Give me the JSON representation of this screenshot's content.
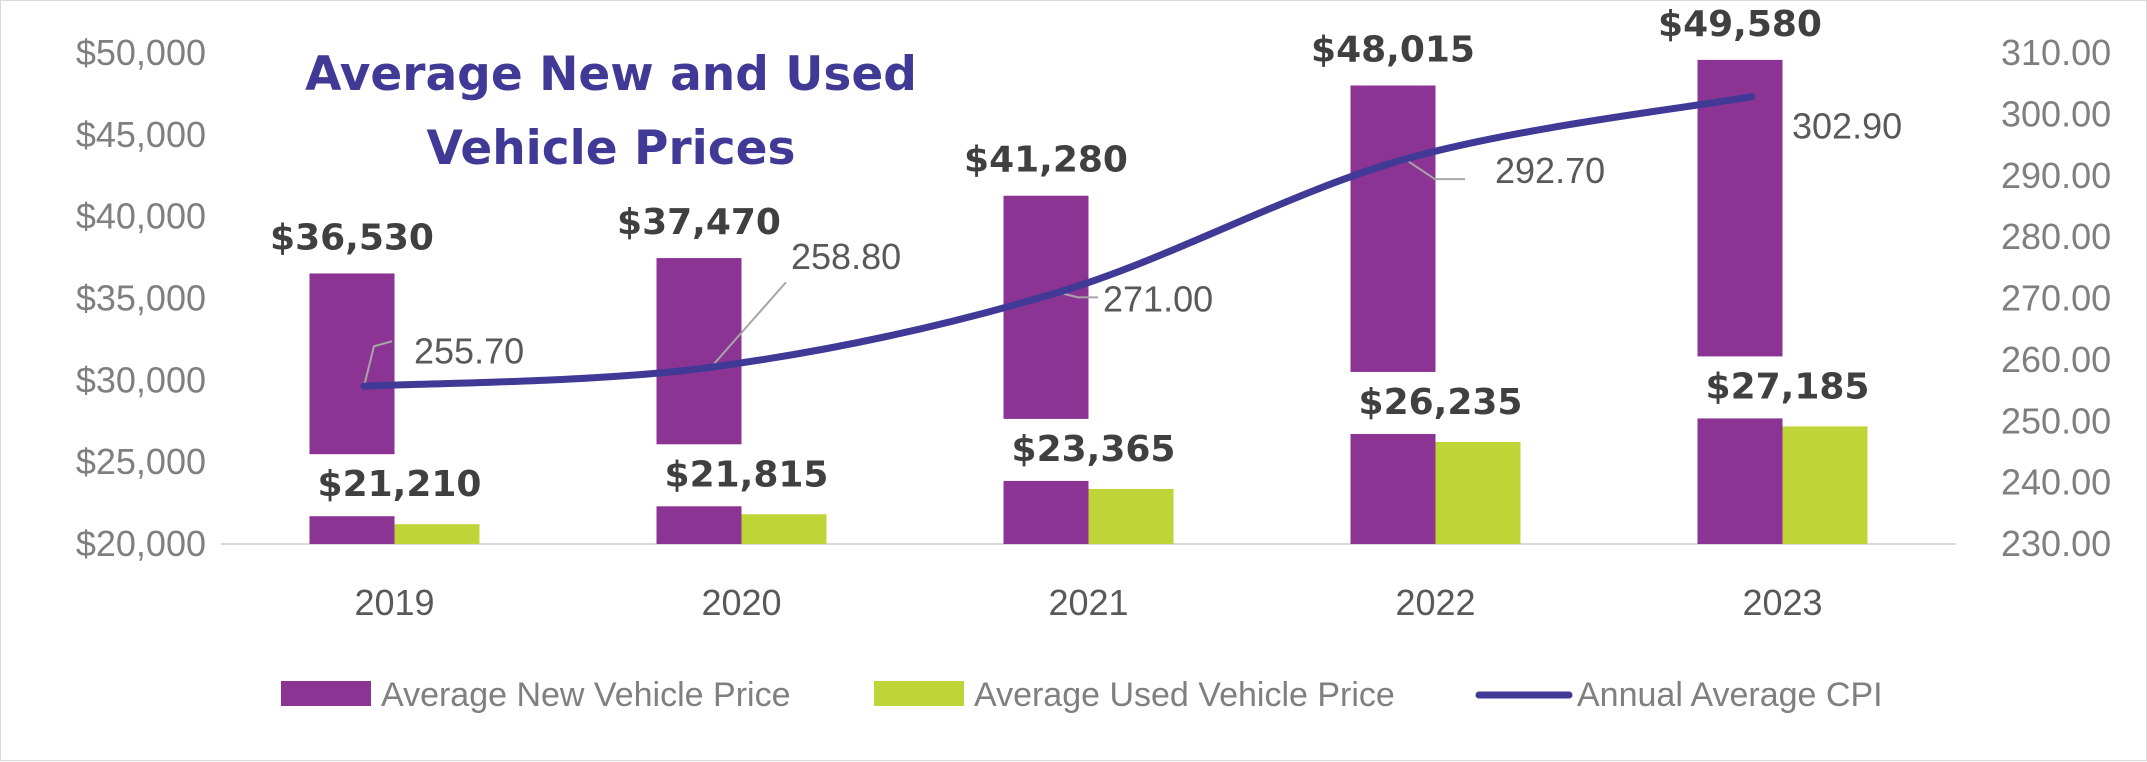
{
  "chart_data": {
    "type": "bar",
    "title_lines": [
      "Average New and Used",
      "Vehicle Prices"
    ],
    "categories": [
      "2019",
      "2020",
      "2021",
      "2022",
      "2023"
    ],
    "series": [
      {
        "name": "Average New Vehicle Price",
        "kind": "bar",
        "axis": "left",
        "color": "#8b3494",
        "values": [
          36530,
          37470,
          41280,
          48015,
          49580
        ],
        "labels": [
          "$36,530",
          "$37,470",
          "$41,280",
          "$48,015",
          "$49,580"
        ]
      },
      {
        "name": "Average Used Vehicle Price",
        "kind": "bar",
        "axis": "left",
        "color": "#bfd437",
        "values": [
          21210,
          21815,
          23365,
          26235,
          27185
        ],
        "labels": [
          "$21,210",
          "$21,815",
          "$23,365",
          "$26,235",
          "$27,185"
        ]
      },
      {
        "name": "Annual Average CPI",
        "kind": "line",
        "axis": "right",
        "color": "#403a96",
        "values": [
          255.7,
          258.8,
          271.0,
          292.7,
          302.9
        ],
        "labels": [
          "255.70",
          "258.80",
          "271.00",
          "292.70",
          "302.90"
        ]
      }
    ],
    "y_left": {
      "range": [
        20000,
        50000
      ],
      "ticks": [
        20000,
        25000,
        30000,
        35000,
        40000,
        45000,
        50000
      ],
      "tick_labels": [
        "$20,000",
        "$25,000",
        "$30,000",
        "$35,000",
        "$40,000",
        "$45,000",
        "$50,000"
      ]
    },
    "y_right": {
      "range": [
        230,
        310
      ],
      "ticks": [
        230,
        240,
        250,
        260,
        270,
        280,
        290,
        300,
        310
      ],
      "tick_labels": [
        "230.00",
        "240.00",
        "250.00",
        "260.00",
        "270.00",
        "280.00",
        "290.00",
        "300.00",
        "310.00"
      ]
    },
    "grid": false,
    "legend_position": "bottom"
  }
}
